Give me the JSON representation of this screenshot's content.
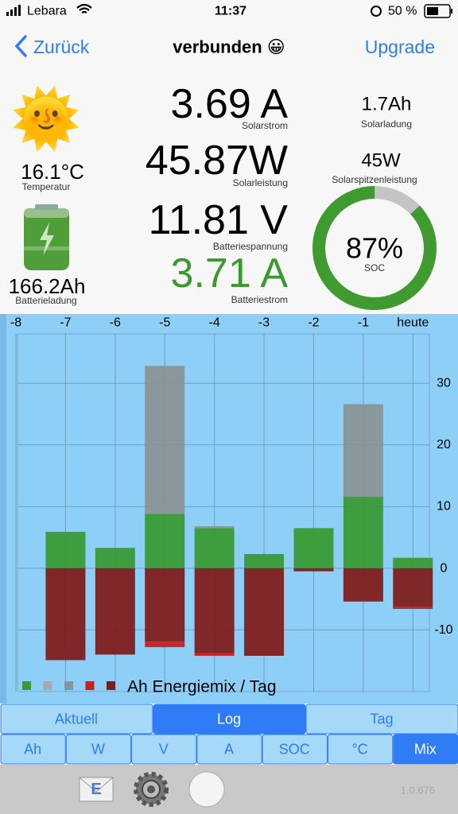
{
  "status_bar": {
    "carrier": "Lebara",
    "time": "11:37",
    "battery": "50 %"
  },
  "nav": {
    "back": "Zurück",
    "title": "verbunden 😀",
    "action": "Upgrade"
  },
  "readings": {
    "temperature": {
      "value": "16.1°C",
      "label": "Temperatur"
    },
    "battery_charge": {
      "value": "166.2Ah",
      "label": "Batterieladung"
    },
    "solar_current": {
      "value": "3.69 A",
      "label": "Solarstrom"
    },
    "solar_power": {
      "value": "45.87W",
      "label": "Solarleistung"
    },
    "battery_voltage": {
      "value": "11.81 V",
      "label": "Batteriespannung"
    },
    "battery_current": {
      "value": "3.71 A",
      "label": "Batteriestrom"
    },
    "solar_charge": {
      "value": "1.7Ah",
      "label": "Solarladung"
    },
    "solar_peak": {
      "value": "45W",
      "label": "Solarspitzenleistung"
    },
    "soc": {
      "value": 87,
      "label": "87%",
      "name": "SOC"
    }
  },
  "chart_data": {
    "type": "bar",
    "stacked": true,
    "legend_title": "Ah Energiemix / Tag",
    "categories": [
      "-8",
      "-7",
      "-6",
      "-5",
      "-4",
      "-3",
      "-2",
      "-1",
      "heute"
    ],
    "series": [
      {
        "color": "#3a9a35",
        "values": [
          null,
          5.9,
          3.3,
          8.8,
          6.5,
          2.3,
          6.5,
          11.6,
          1.7
        ]
      },
      {
        "color": "#a4a9ab",
        "values": [
          null,
          null,
          null,
          null,
          null,
          null,
          null,
          null,
          null
        ]
      },
      {
        "color": "#8a9397",
        "values": [
          null,
          null,
          null,
          24.0,
          0.3,
          null,
          null,
          15.0,
          null
        ]
      },
      {
        "color": "#c8211c",
        "values": [
          null,
          null,
          null,
          -0.9,
          -0.4,
          null,
          null,
          null,
          -0.3
        ]
      },
      {
        "color": "#7e1d1d",
        "values": [
          null,
          -14.9,
          -14.0,
          -11.9,
          -13.8,
          -14.2,
          -0.5,
          -5.4,
          -6.3
        ]
      }
    ],
    "ylim": [
      -20,
      38
    ],
    "yticks": [
      -10,
      0,
      10,
      20,
      30
    ],
    "grid": true
  },
  "tabs": {
    "modes": [
      "Aktuell",
      "Log",
      "Tag"
    ],
    "selected_mode": 1,
    "units": [
      "Ah",
      "W",
      "V",
      "A",
      "SOC",
      "°C",
      "Mix"
    ],
    "selected_unit": 6
  },
  "toolbar": {
    "version": "1.0.676"
  }
}
